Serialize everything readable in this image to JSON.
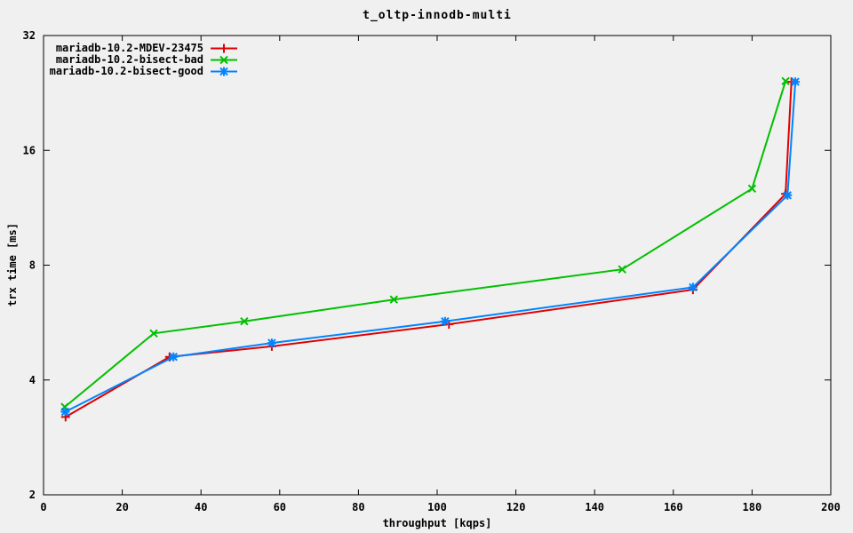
{
  "chart_data": {
    "type": "line",
    "title": "t_oltp-innodb-multi",
    "xlabel": "throughput [kqps]",
    "ylabel": "trx time [ms]",
    "xlim": [
      0,
      200
    ],
    "ylim": [
      2,
      32
    ],
    "y_scale": "log2",
    "x_ticks": [
      0,
      20,
      40,
      60,
      80,
      100,
      120,
      140,
      160,
      180,
      200
    ],
    "y_ticks": [
      2,
      4,
      8,
      16,
      32
    ],
    "grid": false,
    "legend_position": "top-left-inside",
    "background_color": "#f0f0f0",
    "axis_color": "#000000",
    "series": [
      {
        "name": "mariadb-10.2-MDEV-23475",
        "color": "#e00000",
        "marker": "plus",
        "points": [
          [
            5.6,
            3.2
          ],
          [
            32,
            4.6
          ],
          [
            58,
            4.9
          ],
          [
            103,
            5.6
          ],
          [
            165,
            6.9
          ],
          [
            188.5,
            12.3
          ],
          [
            190,
            24.2
          ]
        ]
      },
      {
        "name": "mariadb-10.2-bisect-bad",
        "color": "#00c000",
        "marker": "cross",
        "points": [
          [
            5.4,
            3.4
          ],
          [
            28,
            5.3
          ],
          [
            51,
            5.7
          ],
          [
            89,
            6.5
          ],
          [
            147,
            7.8
          ],
          [
            180,
            12.7
          ],
          [
            188.5,
            24.3
          ]
        ]
      },
      {
        "name": "mariadb-10.2-bisect-good",
        "color": "#0084ff",
        "marker": "asterisk",
        "points": [
          [
            5.5,
            3.3
          ],
          [
            33,
            4.6
          ],
          [
            58,
            5.0
          ],
          [
            102,
            5.7
          ],
          [
            165,
            7.0
          ],
          [
            189,
            12.2
          ],
          [
            191,
            24.2
          ]
        ]
      }
    ]
  }
}
